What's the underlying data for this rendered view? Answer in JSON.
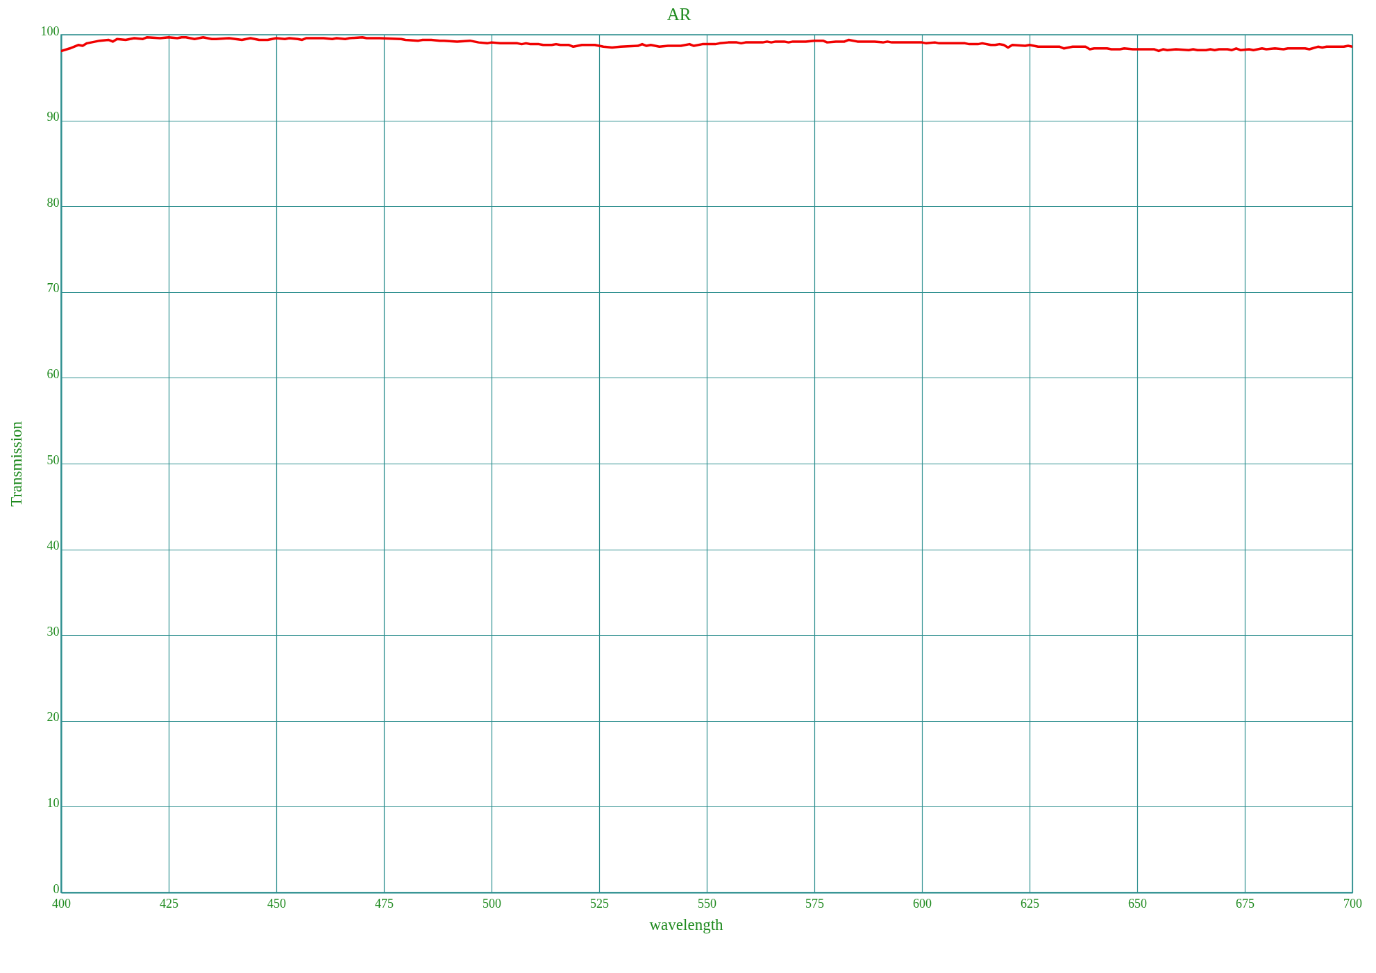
{
  "chart_data": {
    "type": "line",
    "title": "AR",
    "xlabel": "wavelength",
    "ylabel": "Transmission",
    "x": [
      400,
      402,
      404,
      405,
      406,
      409,
      411,
      412,
      413,
      415,
      417,
      419,
      420,
      423,
      425,
      427,
      428,
      429,
      431,
      433,
      435,
      436,
      439,
      442,
      444,
      446,
      448,
      450,
      452,
      453,
      455,
      456,
      457,
      461,
      463,
      464,
      466,
      467,
      470,
      471,
      474,
      479,
      480,
      483,
      484,
      486,
      488,
      489,
      492,
      495,
      497,
      499,
      500,
      502,
      506,
      507,
      508,
      509,
      511,
      512,
      514,
      515,
      516,
      518,
      519,
      521,
      524,
      526,
      528,
      530,
      534,
      535,
      536,
      537,
      539,
      541,
      544,
      546,
      547,
      549,
      552,
      553,
      555,
      557,
      558,
      559,
      563,
      564,
      565,
      566,
      568,
      569,
      570,
      573,
      575,
      577,
      578,
      580,
      582,
      583,
      585,
      589,
      591,
      592,
      593,
      600,
      601,
      603,
      604,
      610,
      611,
      613,
      614,
      616,
      617,
      618,
      619,
      620,
      621,
      624,
      625,
      627,
      632,
      633,
      635,
      638,
      639,
      640,
      643,
      644,
      646,
      647,
      649,
      654,
      655,
      656,
      657,
      659,
      662,
      663,
      664,
      666,
      667,
      668,
      669,
      671,
      672,
      673,
      674,
      676,
      677,
      679,
      680,
      682,
      684,
      685,
      689,
      690,
      692,
      693,
      694,
      698,
      699,
      700
    ],
    "series": [
      {
        "color": "#f00000",
        "values": [
          98.1,
          98.4,
          98.8,
          98.7,
          99.0,
          99.3,
          99.4,
          99.2,
          99.5,
          99.4,
          99.6,
          99.5,
          99.7,
          99.6,
          99.7,
          99.6,
          99.7,
          99.7,
          99.5,
          99.7,
          99.5,
          99.5,
          99.6,
          99.4,
          99.6,
          99.4,
          99.4,
          99.6,
          99.5,
          99.6,
          99.5,
          99.4,
          99.6,
          99.6,
          99.5,
          99.6,
          99.5,
          99.6,
          99.7,
          99.6,
          99.6,
          99.5,
          99.4,
          99.3,
          99.4,
          99.4,
          99.3,
          99.3,
          99.2,
          99.3,
          99.1,
          99.0,
          99.1,
          99.0,
          99.0,
          98.9,
          99.0,
          98.9,
          98.9,
          98.8,
          98.8,
          98.9,
          98.8,
          98.8,
          98.6,
          98.8,
          98.8,
          98.6,
          98.5,
          98.6,
          98.7,
          98.9,
          98.7,
          98.8,
          98.6,
          98.7,
          98.7,
          98.9,
          98.7,
          98.9,
          98.9,
          99.0,
          99.1,
          99.1,
          99.0,
          99.1,
          99.1,
          99.2,
          99.1,
          99.2,
          99.2,
          99.1,
          99.2,
          99.2,
          99.3,
          99.3,
          99.1,
          99.2,
          99.2,
          99.4,
          99.2,
          99.2,
          99.1,
          99.2,
          99.1,
          99.1,
          99.0,
          99.1,
          99.0,
          99.0,
          98.9,
          98.9,
          99.0,
          98.8,
          98.8,
          98.9,
          98.8,
          98.5,
          98.8,
          98.7,
          98.8,
          98.6,
          98.6,
          98.4,
          98.6,
          98.6,
          98.3,
          98.4,
          98.4,
          98.3,
          98.3,
          98.4,
          98.3,
          98.3,
          98.1,
          98.3,
          98.2,
          98.3,
          98.2,
          98.3,
          98.2,
          98.2,
          98.3,
          98.2,
          98.3,
          98.3,
          98.2,
          98.4,
          98.2,
          98.3,
          98.2,
          98.4,
          98.3,
          98.4,
          98.3,
          98.4,
          98.4,
          98.3,
          98.6,
          98.5,
          98.6,
          98.6,
          98.7,
          98.6
        ]
      }
    ],
    "xlim": [
      400,
      700
    ],
    "ylim": [
      0,
      100
    ],
    "xticks": [
      400,
      425,
      450,
      475,
      500,
      525,
      550,
      575,
      600,
      625,
      650,
      675,
      700
    ],
    "yticks": [
      0,
      10,
      20,
      30,
      40,
      50,
      60,
      70,
      80,
      90,
      100
    ],
    "grid": true,
    "line_style": "solid"
  }
}
